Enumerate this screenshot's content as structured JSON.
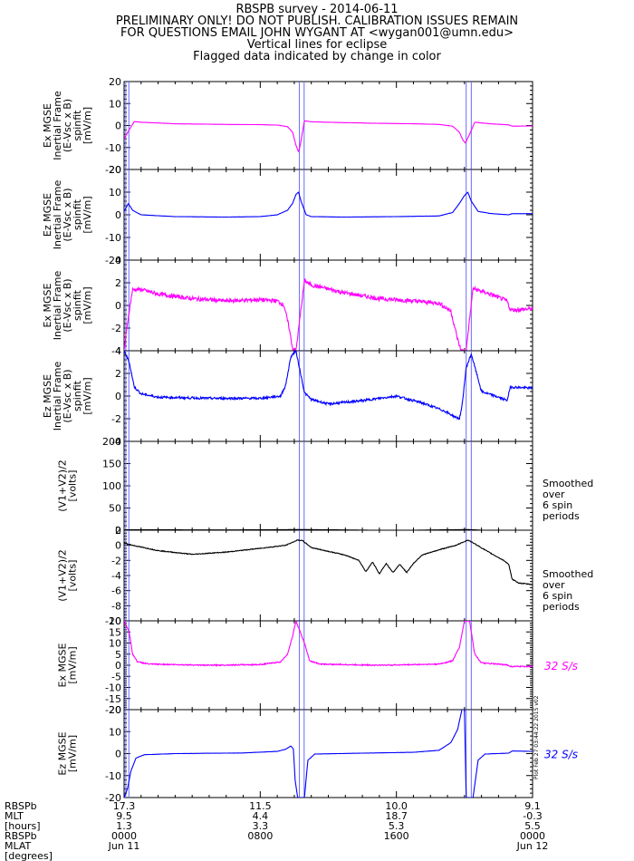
{
  "header": {
    "title": "RBSPB survey - 2014-06-11",
    "line2": "PRELIMINARY ONLY! DO NOT PUBLISH. CALIBRATION ISSUES REMAIN",
    "line3": "FOR QUESTIONS EMAIL JOHN WYGANT AT <wygan001@umn.edu>",
    "line4": "Vertical lines for eclipse",
    "line5": "Flagged data indicated by change in color"
  },
  "footer": {
    "row_labels": [
      "RBSPb",
      "MLT",
      "[hours]",
      "RBSPb",
      "MLAT",
      "[degrees]"
    ],
    "ticks": [
      {
        "rbspb": "17.3",
        "mlt": "9.5",
        "mlat": "1.3",
        "time": "0000",
        "date": "Jun 11"
      },
      {
        "rbspb": "11.5",
        "mlt": "4.4",
        "mlat": "3.3",
        "time": "0800",
        "date": ""
      },
      {
        "rbspb": "10.0",
        "mlt": "18.7",
        "mlat": "5.3",
        "time": "1600",
        "date": ""
      },
      {
        "rbspb": "9.1",
        "mlt": "-0.3",
        "mlat": "5.5",
        "time": "0000",
        "date": "Jun 12"
      }
    ]
  },
  "side_note": "Plot Feb 27 03:44:22 2015 v02",
  "colors": {
    "magenta": "#ff00ff",
    "blue": "#0000ff",
    "black": "#000000",
    "eclipse": "#6a6aff"
  },
  "chart_data": {
    "type": "line",
    "x_unit": "hours since 2014-06-11 00:00",
    "xlim": [
      0,
      24
    ],
    "eclipse_intervals": [
      [
        0.1,
        0.28
      ],
      [
        10.3,
        10.58
      ],
      [
        20.1,
        20.4
      ]
    ],
    "panels": [
      {
        "id": "ex_spinfit_1",
        "ylabel": [
          "Ex MGSE",
          "Inertial Frame",
          "(E-Vsc x B)",
          "spinfit",
          "[mV/m]"
        ],
        "ylim": [
          -20,
          20
        ],
        "yticks": [
          -20,
          -10,
          0,
          10,
          20
        ],
        "color": "magenta",
        "note": "",
        "series": [
          [
            0,
            -6
          ],
          [
            0.3,
            -2
          ],
          [
            0.6,
            1.8
          ],
          [
            1,
            1.5
          ],
          [
            3,
            0.8
          ],
          [
            6,
            0.5
          ],
          [
            8,
            0.4
          ],
          [
            9,
            0.2
          ],
          [
            9.6,
            -0.5
          ],
          [
            9.9,
            -3
          ],
          [
            10.1,
            -9
          ],
          [
            10.25,
            -12
          ],
          [
            10.35,
            -9
          ],
          [
            10.6,
            2.2
          ],
          [
            11,
            1.7
          ],
          [
            13,
            1.3
          ],
          [
            15,
            1
          ],
          [
            17,
            0.8
          ],
          [
            18.5,
            0.5
          ],
          [
            19.3,
            -0.3
          ],
          [
            19.7,
            -3
          ],
          [
            19.9,
            -6.5
          ],
          [
            20.05,
            -8
          ],
          [
            20.3,
            -4
          ],
          [
            20.6,
            1.5
          ],
          [
            21.5,
            0.8
          ],
          [
            22.6,
            0.3
          ],
          [
            22.8,
            -0.3
          ],
          [
            24,
            -0.2
          ]
        ]
      },
      {
        "id": "ez_spinfit_1",
        "ylabel": [
          "Ez MGSE",
          "Inertial Frame",
          "(E-Vsc x B)",
          "spinfit",
          "[mV/m]"
        ],
        "ylim": [
          -20,
          20
        ],
        "yticks": [
          -20,
          -10,
          0,
          10,
          20
        ],
        "color": "blue",
        "note": "",
        "series": [
          [
            0,
            1.5
          ],
          [
            0.25,
            5
          ],
          [
            0.5,
            2
          ],
          [
            1,
            0
          ],
          [
            3,
            -0.8
          ],
          [
            6,
            -1
          ],
          [
            8,
            -0.8
          ],
          [
            9,
            0
          ],
          [
            9.6,
            2
          ],
          [
            9.9,
            5
          ],
          [
            10.1,
            9
          ],
          [
            10.25,
            10
          ],
          [
            10.4,
            6
          ],
          [
            10.7,
            0
          ],
          [
            11,
            -0.8
          ],
          [
            13,
            -1
          ],
          [
            16,
            -0.8
          ],
          [
            18.5,
            -0.5
          ],
          [
            19.3,
            1
          ],
          [
            19.7,
            5
          ],
          [
            20,
            8.5
          ],
          [
            20.2,
            10
          ],
          [
            20.4,
            6
          ],
          [
            20.8,
            1.5
          ],
          [
            21.5,
            0.6
          ],
          [
            22.6,
            0
          ],
          [
            22.8,
            0.5
          ],
          [
            24,
            0.5
          ]
        ]
      },
      {
        "id": "ex_spinfit_2",
        "ylabel": [
          "Ex MGSE",
          "Inertial Frame",
          "(E-Vsc x B)",
          "spinfit",
          "[mV/m]"
        ],
        "ylim": [
          -4,
          4
        ],
        "yticks": [
          -4,
          -2,
          0,
          2,
          4
        ],
        "color": "magenta",
        "note": "",
        "series": [
          [
            0,
            -4
          ],
          [
            0.25,
            -1
          ],
          [
            0.5,
            1.4
          ],
          [
            1,
            1.4
          ],
          [
            2,
            1
          ],
          [
            4,
            0.6
          ],
          [
            6,
            0.4
          ],
          [
            8,
            0.5
          ],
          [
            9,
            0.4
          ],
          [
            9.4,
            0
          ],
          [
            9.7,
            -2
          ],
          [
            9.9,
            -3.8
          ],
          [
            10.1,
            -4
          ],
          [
            10.6,
            2.2
          ],
          [
            11,
            1.8
          ],
          [
            13,
            1.1
          ],
          [
            15,
            0.6
          ],
          [
            17,
            0.4
          ],
          [
            18.5,
            0.2
          ],
          [
            19.2,
            -0.5
          ],
          [
            19.6,
            -3
          ],
          [
            19.8,
            -4
          ],
          [
            20.1,
            -4
          ],
          [
            20.5,
            1.5
          ],
          [
            21.5,
            1
          ],
          [
            22.5,
            0.4
          ],
          [
            22.7,
            -0.4
          ],
          [
            24,
            -0.3
          ]
        ]
      },
      {
        "id": "ez_spinfit_2",
        "ylabel": [
          "Ez MGSE",
          "Inertial Frame",
          "(E-Vsc x B)",
          "spinfit",
          "[mV/m]"
        ],
        "ylim": [
          -4,
          4
        ],
        "yticks": [
          -4,
          -2,
          0,
          2,
          4
        ],
        "color": "blue",
        "note": "",
        "series": [
          [
            0,
            4
          ],
          [
            0.3,
            3
          ],
          [
            0.6,
            0.8
          ],
          [
            1,
            0.2
          ],
          [
            2,
            -0.1
          ],
          [
            5,
            -0.2
          ],
          [
            8,
            -0.2
          ],
          [
            9.2,
            0
          ],
          [
            9.5,
            1
          ],
          [
            9.8,
            3.5
          ],
          [
            10.1,
            4
          ],
          [
            10.6,
            0.3
          ],
          [
            11,
            -0.3
          ],
          [
            12,
            -0.7
          ],
          [
            14,
            -0.4
          ],
          [
            16,
            0
          ],
          [
            17.5,
            -0.6
          ],
          [
            18.8,
            -1.3
          ],
          [
            19.4,
            -1.8
          ],
          [
            19.7,
            -2
          ],
          [
            19.85,
            -1
          ],
          [
            20.1,
            2.5
          ],
          [
            20.4,
            3.7
          ],
          [
            21,
            0.4
          ],
          [
            22,
            -0.1
          ],
          [
            22.5,
            -0.4
          ],
          [
            22.7,
            0.8
          ],
          [
            24,
            0.7
          ]
        ]
      },
      {
        "id": "v_avg_1",
        "ylabel": [
          "(V1+V2)/2",
          "[volts]"
        ],
        "ylim": [
          0,
          200
        ],
        "yticks": [
          0,
          50,
          100,
          150,
          200
        ],
        "color": "black",
        "note": "Smoothed over 6 spin periods",
        "series": [
          [
            0,
            1
          ],
          [
            6,
            0.5
          ],
          [
            10.4,
            1.5
          ],
          [
            16,
            -0.5
          ],
          [
            20.2,
            1.5
          ],
          [
            22.7,
            -3
          ],
          [
            24,
            -4
          ]
        ]
      },
      {
        "id": "v_avg_2",
        "ylabel": [
          "(V1+V2)/2",
          "[volts]"
        ],
        "ylim": [
          -10,
          2
        ],
        "yticks": [
          -10,
          -8,
          -6,
          -4,
          -2,
          0,
          2
        ],
        "color": "black",
        "note": "Smoothed over 6 spin periods",
        "series": [
          [
            0,
            0.3
          ],
          [
            0.5,
            0
          ],
          [
            2,
            -0.7
          ],
          [
            4,
            -1.2
          ],
          [
            6,
            -0.9
          ],
          [
            8,
            -0.4
          ],
          [
            9.5,
            0
          ],
          [
            10.2,
            0.7
          ],
          [
            10.5,
            0.6
          ],
          [
            11,
            -0.3
          ],
          [
            12,
            -0.8
          ],
          [
            13,
            -1.3
          ],
          [
            13.8,
            -2
          ],
          [
            14.2,
            -3.5
          ],
          [
            14.6,
            -2.2
          ],
          [
            15,
            -3.8
          ],
          [
            15.4,
            -2.4
          ],
          [
            15.8,
            -3.6
          ],
          [
            16.2,
            -2.5
          ],
          [
            16.6,
            -3.6
          ],
          [
            17,
            -2.4
          ],
          [
            17.5,
            -1.3
          ],
          [
            18.5,
            -0.6
          ],
          [
            19.5,
            0
          ],
          [
            20.2,
            0.7
          ],
          [
            20.6,
            0.2
          ],
          [
            21.5,
            -1
          ],
          [
            22.3,
            -2
          ],
          [
            22.6,
            -2.5
          ],
          [
            22.8,
            -4.5
          ],
          [
            23.2,
            -5
          ],
          [
            24,
            -5.2
          ]
        ]
      },
      {
        "id": "ex_32",
        "ylabel": [
          "Ex MGSE",
          "[mV/m]"
        ],
        "ylim": [
          -20,
          20
        ],
        "yticks": [
          -20,
          -15,
          -10,
          -5,
          0,
          5,
          10,
          15,
          20
        ],
        "color": "magenta",
        "note": "32 S/s",
        "series": [
          [
            0,
            20
          ],
          [
            0.3,
            15
          ],
          [
            0.5,
            5
          ],
          [
            0.8,
            1.5
          ],
          [
            1.5,
            0.5
          ],
          [
            5,
            0
          ],
          [
            8,
            0.3
          ],
          [
            9.2,
            1.5
          ],
          [
            9.6,
            5
          ],
          [
            9.9,
            13
          ],
          [
            10.1,
            20
          ],
          [
            10.6,
            10
          ],
          [
            10.9,
            2
          ],
          [
            11.5,
            0.5
          ],
          [
            15,
            0
          ],
          [
            18.5,
            0.5
          ],
          [
            19.3,
            2
          ],
          [
            19.7,
            8
          ],
          [
            20,
            20
          ],
          [
            20.3,
            20
          ],
          [
            20.6,
            5
          ],
          [
            21,
            1
          ],
          [
            22.5,
            0.2
          ],
          [
            22.7,
            -0.6
          ],
          [
            24,
            -0.5
          ]
        ]
      },
      {
        "id": "ez_32",
        "ylabel": [
          "Ez MGSE",
          "[mV/m]"
        ],
        "ylim": [
          -20,
          20
        ],
        "yticks": [
          -20,
          -10,
          0,
          10,
          20
        ],
        "color": "blue",
        "note": "32 S/s",
        "series": [
          [
            0,
            -20
          ],
          [
            0.2,
            -16
          ],
          [
            0.4,
            -8
          ],
          [
            0.7,
            -2
          ],
          [
            1.2,
            -0.5
          ],
          [
            3,
            0
          ],
          [
            7,
            0.3
          ],
          [
            9,
            1
          ],
          [
            9.5,
            2
          ],
          [
            9.8,
            3.5
          ],
          [
            9.95,
            2
          ],
          [
            10.05,
            -12
          ],
          [
            10.2,
            -20
          ],
          [
            10.6,
            -20
          ],
          [
            10.8,
            -3
          ],
          [
            11.2,
            -0.2
          ],
          [
            14,
            0.2
          ],
          [
            17,
            0.6
          ],
          [
            18.5,
            1.5
          ],
          [
            19.2,
            5
          ],
          [
            19.6,
            11
          ],
          [
            19.85,
            20
          ],
          [
            20.0,
            20
          ],
          [
            20.1,
            -20
          ],
          [
            20.5,
            -20
          ],
          [
            20.8,
            -3
          ],
          [
            21.2,
            -0.2
          ],
          [
            22.6,
            0.2
          ],
          [
            22.8,
            1.2
          ],
          [
            24,
            1
          ]
        ]
      }
    ]
  }
}
